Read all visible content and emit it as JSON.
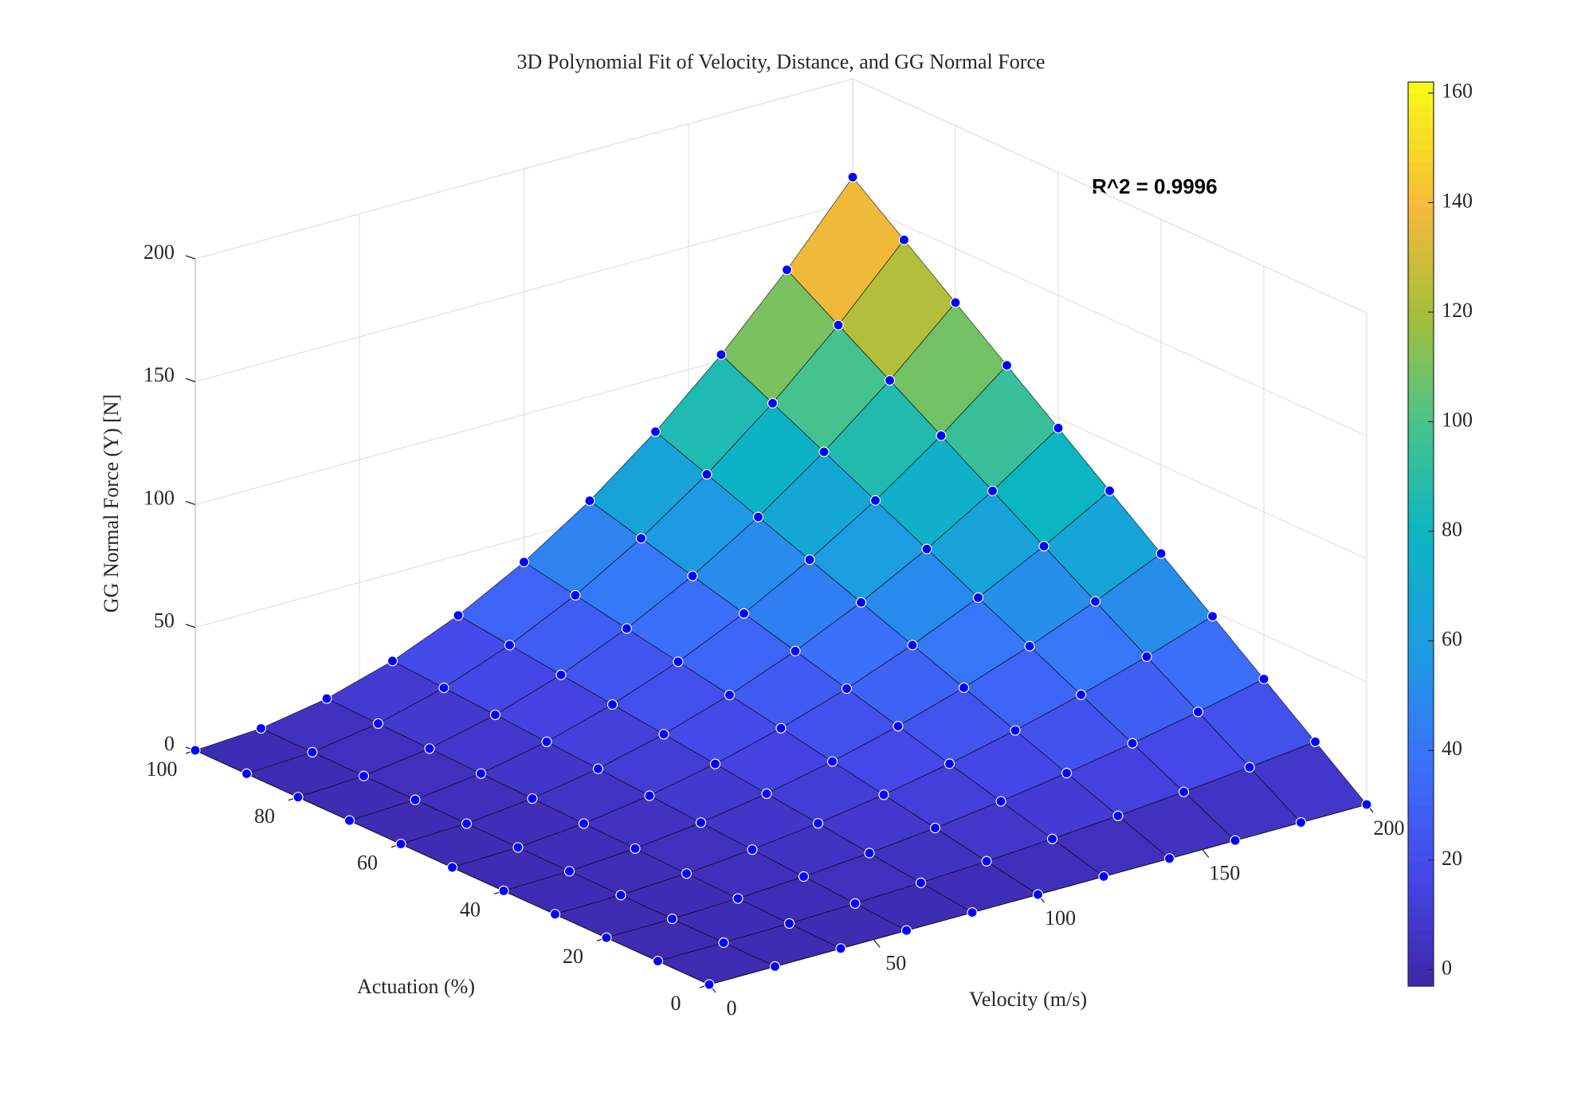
{
  "chart_data": {
    "type": "surface3d",
    "title": "3D Polynomial Fit of Velocity, Distance, and GG Normal Force",
    "xlabel": "Velocity (m/s)",
    "ylabel": "Actuation (%)",
    "zlabel": "GG Normal Force (Y) [N]",
    "annotation": "R^2 = 0.9996",
    "x": [
      0,
      20,
      40,
      60,
      80,
      100,
      120,
      140,
      160,
      180,
      200
    ],
    "y": [
      0,
      10,
      20,
      30,
      40,
      50,
      60,
      70,
      80,
      90,
      100
    ],
    "z": [
      [
        0,
        0,
        0,
        0,
        0,
        0,
        0,
        0,
        0,
        0,
        0
      ],
      [
        0,
        0.16,
        0.64,
        1.44,
        2.56,
        4,
        5.76,
        7.84,
        10.24,
        12.96,
        16
      ],
      [
        0,
        0.32,
        1.28,
        2.88,
        5.12,
        8,
        11.52,
        15.68,
        20.48,
        25.92,
        32
      ],
      [
        0,
        0.48,
        1.92,
        4.32,
        7.68,
        12,
        17.28,
        23.52,
        30.72,
        38.88,
        48
      ],
      [
        0,
        0.64,
        2.56,
        5.76,
        10.24,
        16,
        23.04,
        31.36,
        40.96,
        51.84,
        64
      ],
      [
        0,
        0.8,
        3.2,
        7.2,
        12.8,
        20,
        28.8,
        39.2,
        51.2,
        64.8,
        80
      ],
      [
        0,
        0.96,
        3.84,
        8.64,
        15.36,
        24,
        34.56,
        47.04,
        61.44,
        77.76,
        96
      ],
      [
        0,
        1.12,
        4.48,
        10.08,
        17.92,
        28,
        40.32,
        54.88,
        71.68,
        90.72,
        112
      ],
      [
        0,
        1.28,
        5.12,
        11.52,
        20.48,
        32,
        46.08,
        62.72,
        81.92,
        103.68,
        128
      ],
      [
        0,
        1.44,
        5.76,
        12.96,
        23.04,
        36,
        51.84,
        70.56,
        92.16,
        116.64,
        144
      ],
      [
        0,
        1.6,
        6.4,
        14.4,
        25.6,
        40,
        57.6,
        78.4,
        102.4,
        129.6,
        160
      ]
    ],
    "xlim": [
      0,
      200
    ],
    "ylim": [
      0,
      100
    ],
    "zlim": [
      0,
      200
    ],
    "xticks": [
      0,
      50,
      100,
      150,
      200
    ],
    "yticks": [
      0,
      20,
      40,
      60,
      80,
      100
    ],
    "zticks": [
      0,
      50,
      100,
      150,
      200
    ],
    "colorbar": {
      "lim": [
        -3,
        162
      ],
      "ticks": [
        0,
        20,
        40,
        60,
        80,
        100,
        120,
        140,
        160
      ]
    },
    "colormap": "parula",
    "marker_color": "#0000ff",
    "grid": true
  }
}
